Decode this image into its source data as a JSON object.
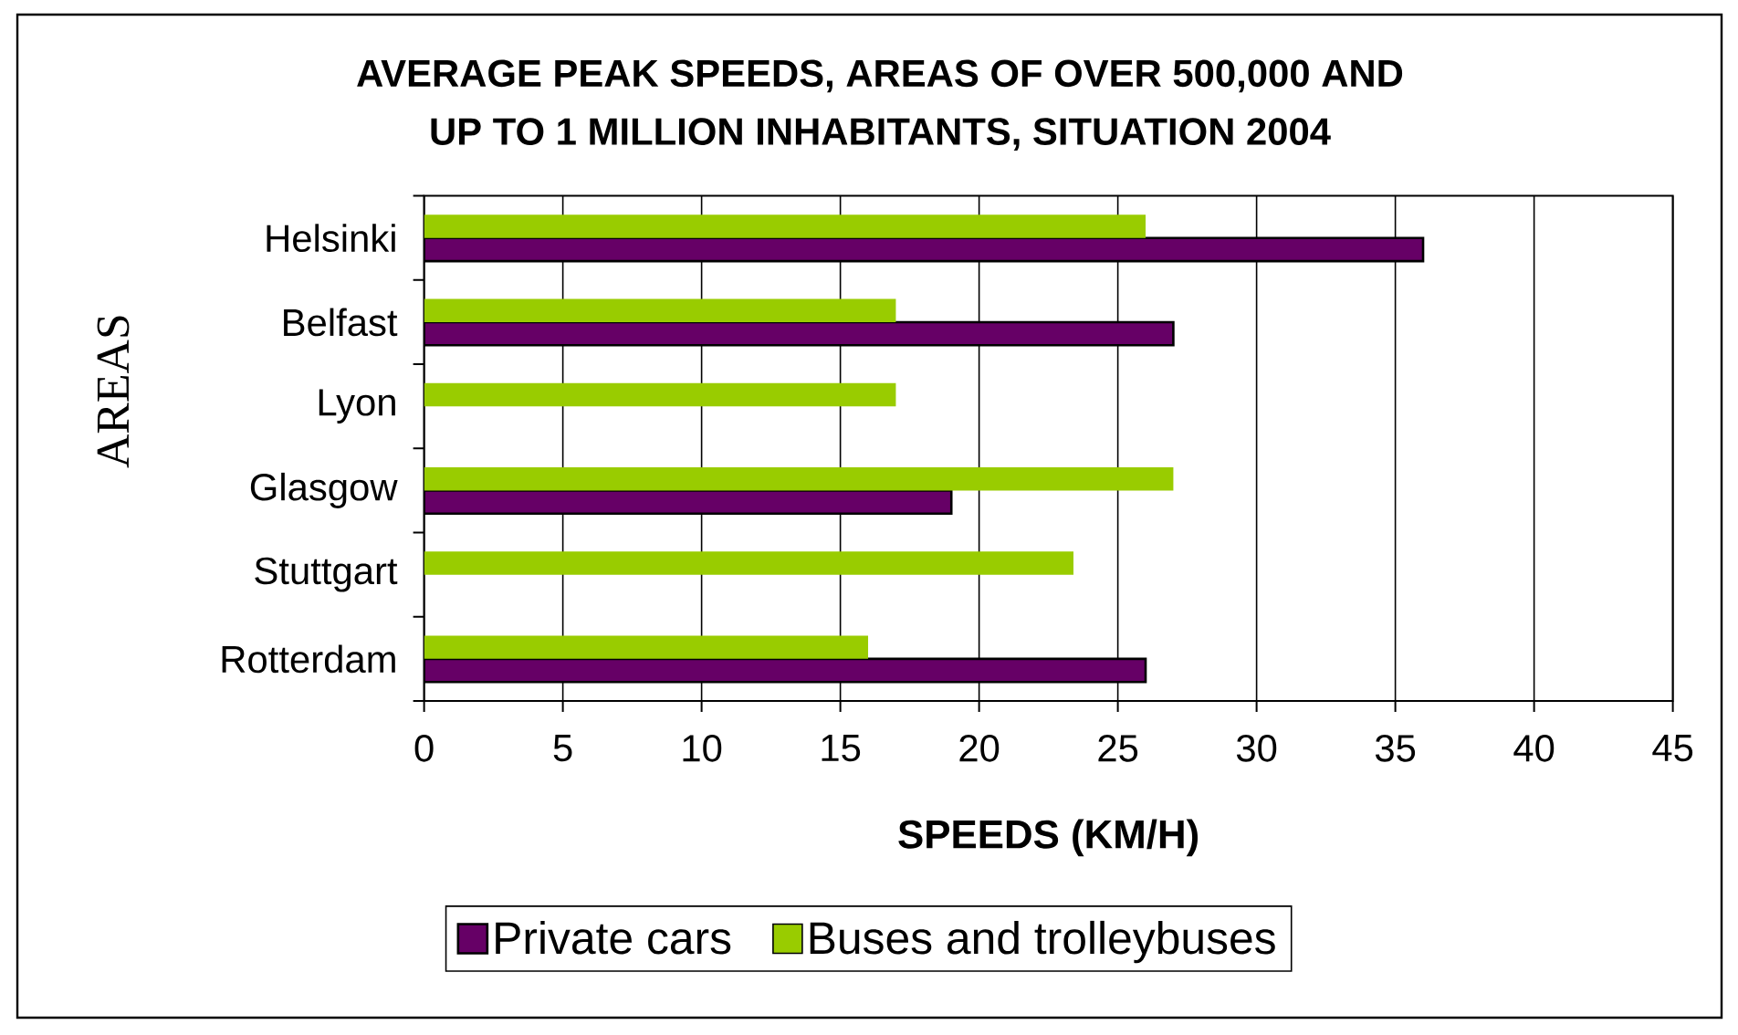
{
  "chart_data": {
    "type": "bar",
    "orientation": "horizontal",
    "title": "AVERAGE PEAK SPEEDS, AREAS OF OVER 500,000 AND UP TO 1 MILLION INHABITANTS, SITUATION 2004",
    "xlabel": "SPEEDS (KM/H)",
    "ylabel": "AREAS",
    "categories": [
      "Helsinki",
      "Belfast",
      "Lyon",
      "Glasgow",
      "Stuttgart",
      "Rotterdam"
    ],
    "series": [
      {
        "name": "Private cars",
        "color": "#660066",
        "values": [
          36,
          27,
          null,
          19,
          null,
          26
        ]
      },
      {
        "name": "Buses and trolleybuses",
        "color": "#99cc00",
        "values": [
          26,
          17,
          17,
          27,
          23.4,
          16
        ]
      }
    ],
    "xlim": [
      0,
      45
    ],
    "xticks": [
      0,
      5,
      10,
      15,
      20,
      25,
      30,
      35,
      40,
      45
    ],
    "grid": "x",
    "legend": "bottom"
  }
}
